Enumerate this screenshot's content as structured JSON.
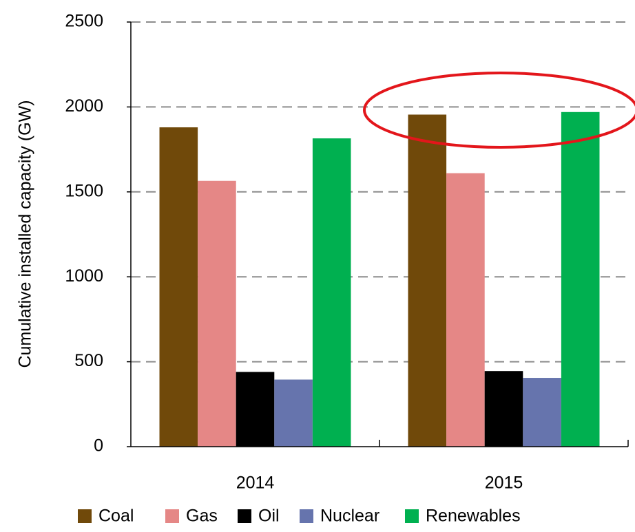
{
  "chart_data": {
    "type": "bar",
    "y_label": "Cumulative installed capacity (GW)",
    "categories": [
      "2014",
      "2015"
    ],
    "series": [
      {
        "name": "Coal",
        "color": "#70490a",
        "values": [
          1880,
          1955
        ]
      },
      {
        "name": "Gas",
        "color": "#e58786",
        "values": [
          1565,
          1610
        ]
      },
      {
        "name": "Oil",
        "color": "#000000",
        "values": [
          440,
          445
        ]
      },
      {
        "name": "Nuclear",
        "color": "#6674ad",
        "values": [
          395,
          405
        ]
      },
      {
        "name": "Renewables",
        "color": "#00b050",
        "values": [
          1815,
          1970
        ]
      }
    ],
    "ylim": [
      0,
      2500
    ],
    "yticks": [
      0,
      500,
      1000,
      1500,
      2000,
      2500
    ],
    "grid": true,
    "legend": "bottom"
  }
}
